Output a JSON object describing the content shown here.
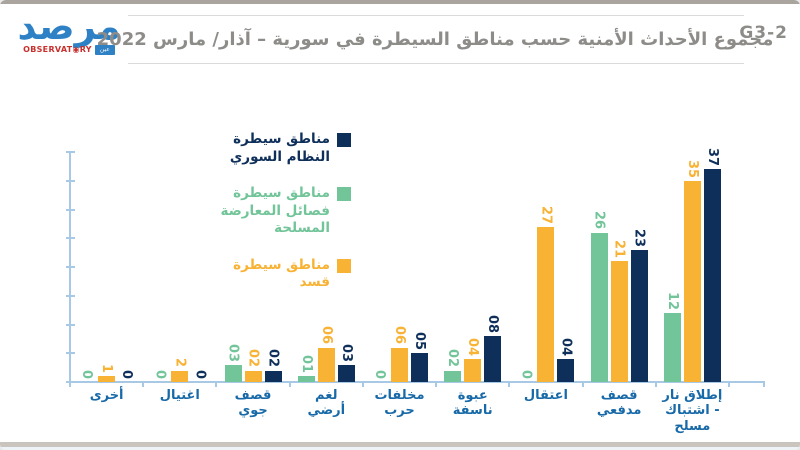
{
  "header": {
    "code": "G3-2",
    "title": "مجموع الأحداث الأمنية حسب مناطق السيطرة في سورية – آذار/ مارس 2022",
    "logo": {
      "arabic": "مرصد",
      "latin_left": "OBSERVAT",
      "eye": "◉",
      "latin_right": "RY",
      "badge": "عين"
    }
  },
  "legend": [
    {
      "line1": "مناطق سيطرة",
      "line2": "النظام السوري",
      "color": "#0e2f5a"
    },
    {
      "line1": "مناطق سيطرة",
      "line2": "فصائل المعارضة المسلحة",
      "color": "#72c499"
    },
    {
      "line1": "مناطق سيطرة",
      "line2": "قسد",
      "color": "#f8b234"
    }
  ],
  "chart_data": {
    "type": "bar",
    "title": "مجموع الأحداث الأمنية حسب مناطق السيطرة في سورية – آذار/ مارس 2022",
    "categories": [
      "أخرى",
      "اغتيال",
      "قصف جوي",
      "لغم أرضي",
      "مخلفات حرب",
      "عبوة ناسفة",
      "اعتقال",
      "قصف مدفعي",
      "إطلاق نار - اشتباك مسلح"
    ],
    "category_display_lines": [
      [
        "أخرى"
      ],
      [
        "اغتيال"
      ],
      [
        "قصف",
        "جوي"
      ],
      [
        "لغم",
        "أرضي"
      ],
      [
        "مخلفات",
        "حرب"
      ],
      [
        "عبوة",
        "ناسفة"
      ],
      [
        "اعتقال"
      ],
      [
        "قصف",
        "مدفعي"
      ],
      [
        "إطلاق نار",
        "- اشتباك",
        "مسلح"
      ]
    ],
    "series": [
      {
        "name": "مناطق سيطرة فصائل المعارضة المسلحة",
        "color": "#72c499",
        "values": [
          0,
          0,
          3,
          1,
          0,
          2,
          0,
          26,
          12
        ],
        "labels": [
          "0",
          "0",
          "03",
          "01",
          "0",
          "02",
          "0",
          "26",
          "12"
        ]
      },
      {
        "name": "مناطق سيطرة قسد",
        "color": "#f8b234",
        "values": [
          1,
          2,
          2,
          6,
          6,
          4,
          27,
          21,
          35
        ],
        "labels": [
          "1",
          "2",
          "02",
          "06",
          "06",
          "04",
          "27",
          "21",
          "35"
        ]
      },
      {
        "name": "مناطق سيطرة النظام السوري",
        "color": "#0e2f5a",
        "values": [
          0,
          0,
          2,
          3,
          5,
          8,
          4,
          23,
          37
        ],
        "labels": [
          "0",
          "0",
          "02",
          "03",
          "05",
          "08",
          "04",
          "23",
          "37"
        ]
      }
    ],
    "ylim": [
      0,
      40
    ],
    "ytick_step": 5,
    "grid": false,
    "legend_position": "upper-left",
    "axis_color": "#a8c9e6",
    "category_label_color": "#1769a8"
  }
}
